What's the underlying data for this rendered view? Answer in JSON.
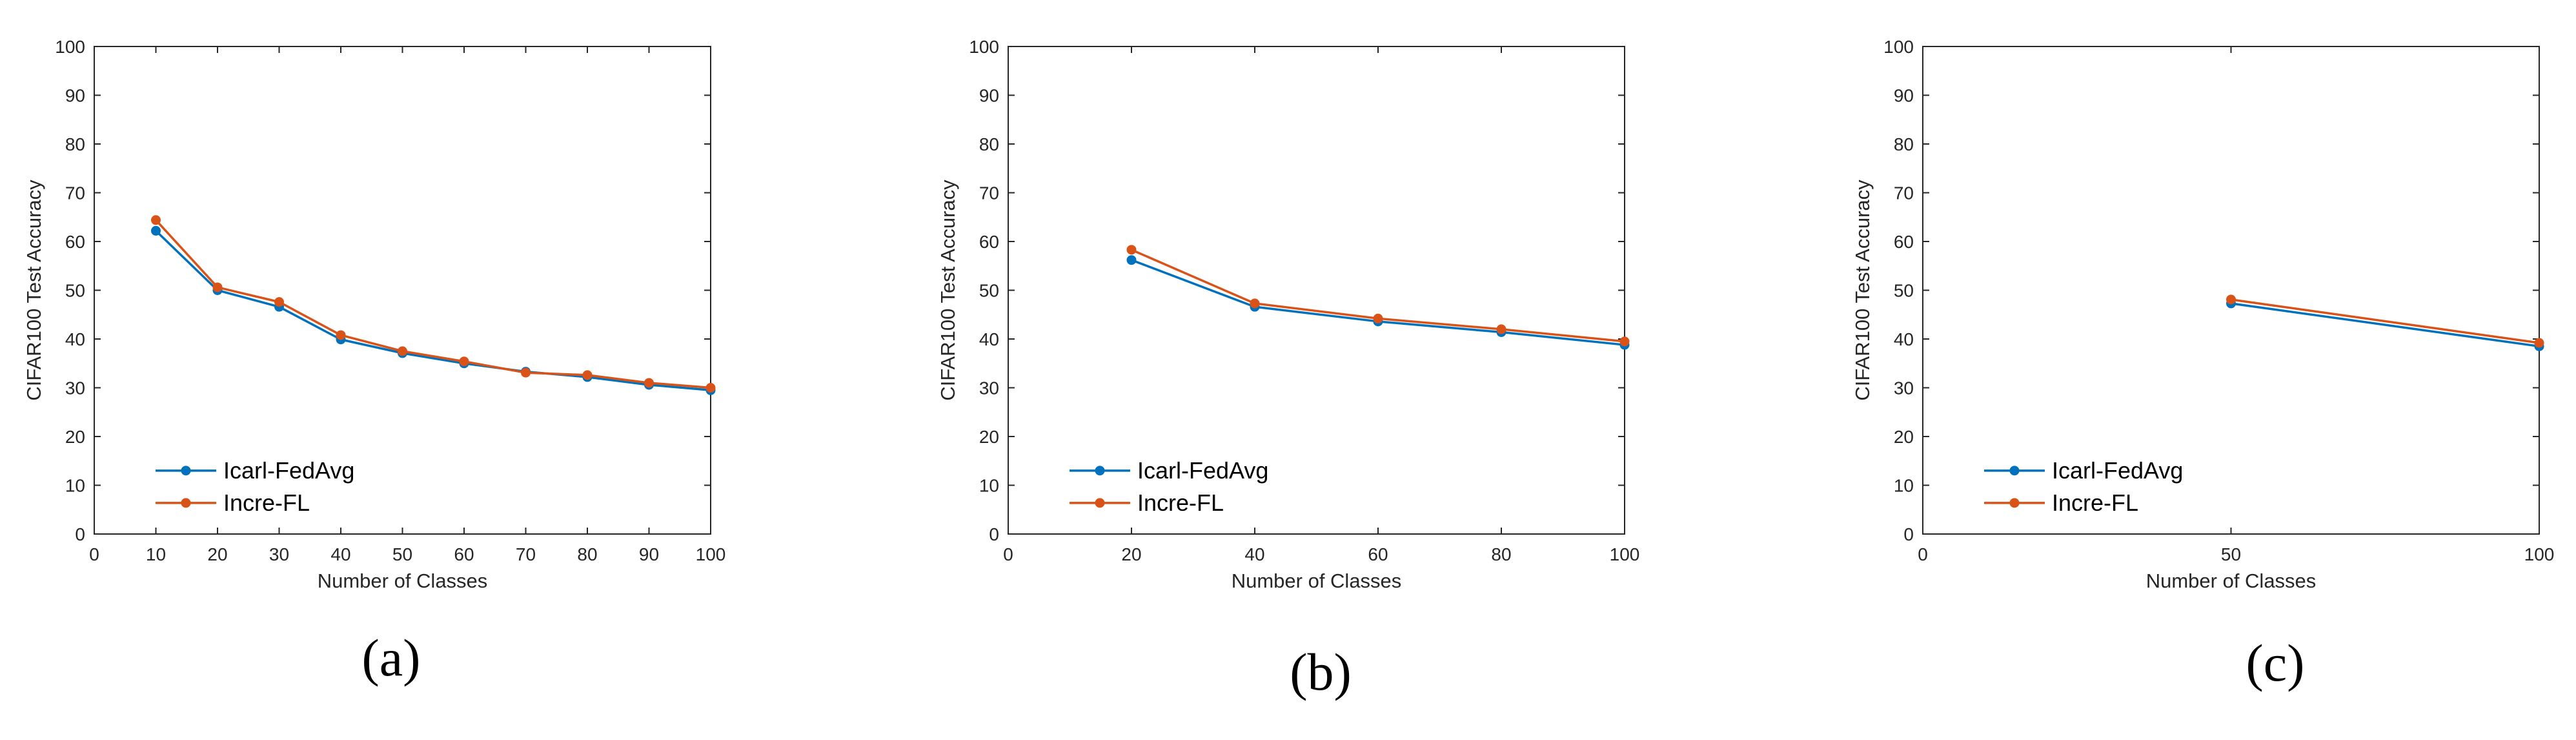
{
  "colors": {
    "icarl_fedavg": "#0072BD",
    "incre_fl": "#D95319",
    "axis": "#262626",
    "background": "#ffffff"
  },
  "chart_data": [
    {
      "type": "line",
      "panel_label": "(a)",
      "title": "",
      "xlabel": "Number of Classes",
      "ylabel": "CIFAR100 Test Accuracy",
      "xlim": [
        0,
        100
      ],
      "ylim": [
        0,
        100
      ],
      "xticks": [
        "0",
        "10",
        "20",
        "30",
        "40",
        "50",
        "60",
        "70",
        "80",
        "90",
        "100"
      ],
      "xtick_values": [
        0,
        10,
        20,
        30,
        40,
        50,
        60,
        70,
        80,
        90,
        100
      ],
      "yticks": [
        "0",
        "10",
        "20",
        "30",
        "40",
        "50",
        "60",
        "70",
        "80",
        "90",
        "100"
      ],
      "ytick_values": [
        0,
        10,
        20,
        30,
        40,
        50,
        60,
        70,
        80,
        90,
        100
      ],
      "legend_position": "lower-left",
      "grid": false,
      "series": [
        {
          "name": "Icarl-FedAvg",
          "color_key": "icarl_fedavg",
          "x": [
            10,
            20,
            30,
            40,
            50,
            60,
            70,
            80,
            90,
            100
          ],
          "values": [
            62.2,
            50.0,
            46.6,
            39.9,
            37.1,
            35.0,
            33.3,
            32.2,
            30.6,
            29.5
          ]
        },
        {
          "name": "Incre-FL",
          "color_key": "incre_fl",
          "x": [
            10,
            20,
            30,
            40,
            50,
            60,
            70,
            80,
            90,
            100
          ],
          "values": [
            64.4,
            50.6,
            47.6,
            40.8,
            37.5,
            35.4,
            33.1,
            32.6,
            31.0,
            30.0
          ]
        }
      ]
    },
    {
      "type": "line",
      "panel_label": "(b)",
      "title": "",
      "xlabel": "Number of Classes",
      "ylabel": "CIFAR100 Test Accuracy",
      "xlim": [
        0,
        100
      ],
      "ylim": [
        0,
        100
      ],
      "xticks": [
        "0",
        "20",
        "40",
        "60",
        "80",
        "100"
      ],
      "xtick_values": [
        0,
        20,
        40,
        60,
        80,
        100
      ],
      "yticks": [
        "0",
        "10",
        "20",
        "30",
        "40",
        "50",
        "60",
        "70",
        "80",
        "90",
        "100"
      ],
      "ytick_values": [
        0,
        10,
        20,
        30,
        40,
        50,
        60,
        70,
        80,
        90,
        100
      ],
      "legend_position": "lower-left",
      "grid": false,
      "series": [
        {
          "name": "Icarl-FedAvg",
          "color_key": "icarl_fedavg",
          "x": [
            20,
            40,
            60,
            80,
            100
          ],
          "values": [
            56.2,
            46.6,
            43.6,
            41.4,
            38.8
          ]
        },
        {
          "name": "Incre-FL",
          "color_key": "incre_fl",
          "x": [
            20,
            40,
            60,
            80,
            100
          ],
          "values": [
            58.3,
            47.3,
            44.2,
            42.0,
            39.5
          ]
        }
      ]
    },
    {
      "type": "line",
      "panel_label": "(c)",
      "title": "",
      "xlabel": "Number of Classes",
      "ylabel": "CIFAR100 Test Accuracy",
      "xlim": [
        0,
        100
      ],
      "ylim": [
        0,
        100
      ],
      "xticks": [
        "0",
        "50",
        "100"
      ],
      "xtick_values": [
        0,
        50,
        100
      ],
      "yticks": [
        "0",
        "10",
        "20",
        "30",
        "40",
        "50",
        "60",
        "70",
        "80",
        "90",
        "100"
      ],
      "ytick_values": [
        0,
        10,
        20,
        30,
        40,
        50,
        60,
        70,
        80,
        90,
        100
      ],
      "legend_position": "lower-left",
      "grid": false,
      "series": [
        {
          "name": "Icarl-FedAvg",
          "color_key": "icarl_fedavg",
          "x": [
            50,
            100
          ],
          "values": [
            47.3,
            38.5
          ]
        },
        {
          "name": "Incre-FL",
          "color_key": "incre_fl",
          "x": [
            50,
            100
          ],
          "values": [
            48.1,
            39.2
          ]
        }
      ]
    }
  ]
}
